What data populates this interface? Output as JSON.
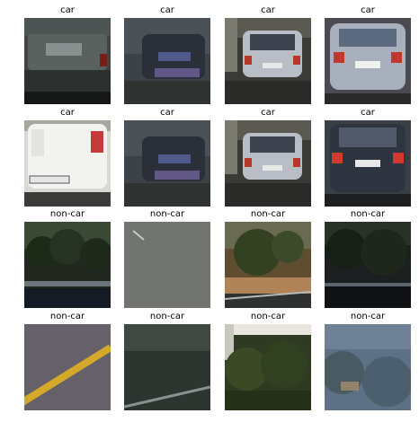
{
  "figure": {
    "panels": [
      {
        "label": "car",
        "scene": "car-rear-dark-van"
      },
      {
        "label": "car",
        "scene": "car-blurry-dark"
      },
      {
        "label": "car",
        "scene": "car-silver-street"
      },
      {
        "label": "car",
        "scene": "car-silver-rear"
      },
      {
        "label": "car",
        "scene": "car-white-rear-closeup"
      },
      {
        "label": "car",
        "scene": "car-blurry-dark"
      },
      {
        "label": "car",
        "scene": "car-silver-street"
      },
      {
        "label": "car",
        "scene": "car-dark-rear"
      },
      {
        "label": "non-car",
        "scene": "trees-dark-rail"
      },
      {
        "label": "non-car",
        "scene": "road-gray"
      },
      {
        "label": "non-car",
        "scene": "tree-sand-road"
      },
      {
        "label": "non-car",
        "scene": "trees-dark-rail-2"
      },
      {
        "label": "non-car",
        "scene": "road-yellow-line"
      },
      {
        "label": "non-car",
        "scene": "road-dark-lane"
      },
      {
        "label": "non-car",
        "scene": "trees-sign"
      },
      {
        "label": "non-car",
        "scene": "hazy-landscape"
      }
    ]
  }
}
